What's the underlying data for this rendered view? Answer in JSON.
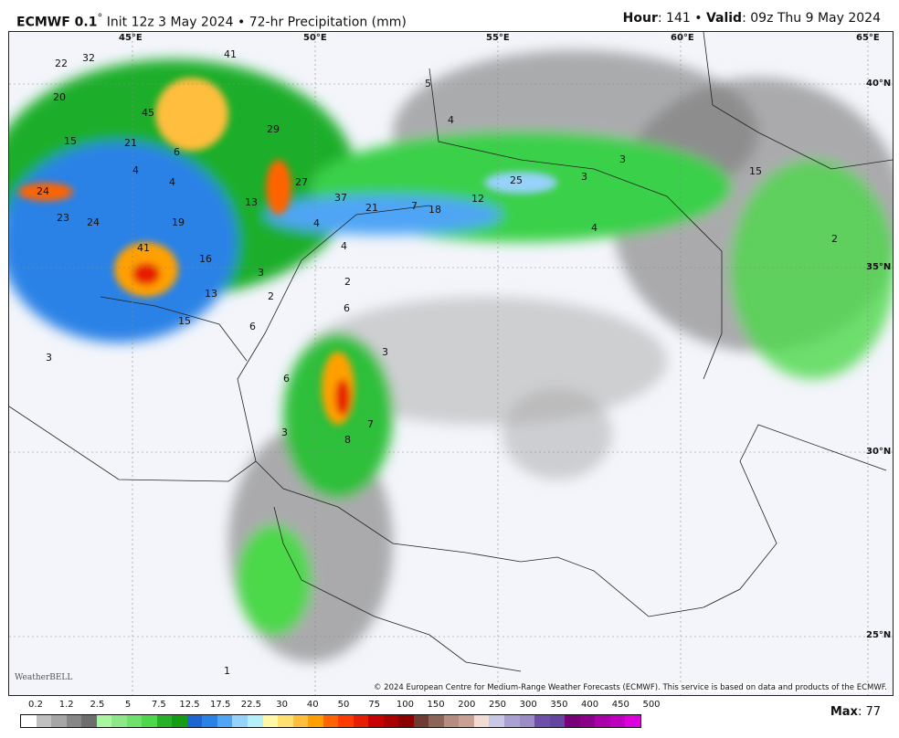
{
  "header": {
    "model": "ECMWF 0.1",
    "degree": "°",
    "init": "Init 12z 3 May 2024",
    "bullet": "•",
    "product": "72-hr Precipitation (mm)",
    "hour_label": "Hour",
    "hour": "141",
    "valid_label": "Valid",
    "valid": "09z Thu 9 May 2024"
  },
  "map": {
    "lon_labels": [
      "45°E",
      "50°E",
      "55°E",
      "60°E",
      "65°E"
    ],
    "lat_labels": [
      "40°N",
      "35°N",
      "30°N",
      "25°N"
    ],
    "values": [
      "22",
      "32",
      "41",
      "20",
      "45",
      "15",
      "21",
      "6",
      "4",
      "4",
      "24",
      "23",
      "24",
      "19",
      "41",
      "16",
      "13",
      "15",
      "3",
      "2",
      "6",
      "29",
      "27",
      "37",
      "21",
      "7",
      "18",
      "12",
      "25",
      "3",
      "3",
      "4",
      "4",
      "15",
      "13",
      "4",
      "2",
      "6",
      "3",
      "6",
      "7",
      "8",
      "3",
      "5",
      "4",
      "1",
      "3",
      "2"
    ],
    "copyright": "© 2024 European Centre for Medium-Range Weather Forecasts (ECMWF). This service is based on data and products of the ECMWF.",
    "logo": "WeatherBELL"
  },
  "legend": {
    "ticks": [
      "0.2",
      "1.2",
      "2.5",
      "5",
      "7.5",
      "12.5",
      "17.5",
      "22.5",
      "30",
      "40",
      "50",
      "75",
      "100",
      "150",
      "200",
      "250",
      "300",
      "350",
      "400",
      "450",
      "500"
    ],
    "colors": [
      "#ffffff",
      "#c0c0c0",
      "#a6a6a6",
      "#878787",
      "#6e6e6e",
      "#aaf5a0",
      "#8ee88a",
      "#6ee26a",
      "#4cd84a",
      "#28b028",
      "#149c14",
      "#1e64d2",
      "#2a82e6",
      "#52a5f5",
      "#96d2fa",
      "#b4f0fa",
      "#fff8a8",
      "#ffe070",
      "#ffbe3c",
      "#ffa000",
      "#ff6400",
      "#ff3c00",
      "#e61e00",
      "#c80000",
      "#aa0000",
      "#8c0000",
      "#6e3c32",
      "#8c6458",
      "#b48c80",
      "#c8a094",
      "#f0dcd2",
      "#c8c8e6",
      "#aaa0d2",
      "#9b8cc8",
      "#6e50aa",
      "#64469f",
      "#780078",
      "#8c008c",
      "#aa00aa",
      "#be00be",
      "#dc00dc"
    ],
    "max_label": "Max",
    "max": "77"
  }
}
